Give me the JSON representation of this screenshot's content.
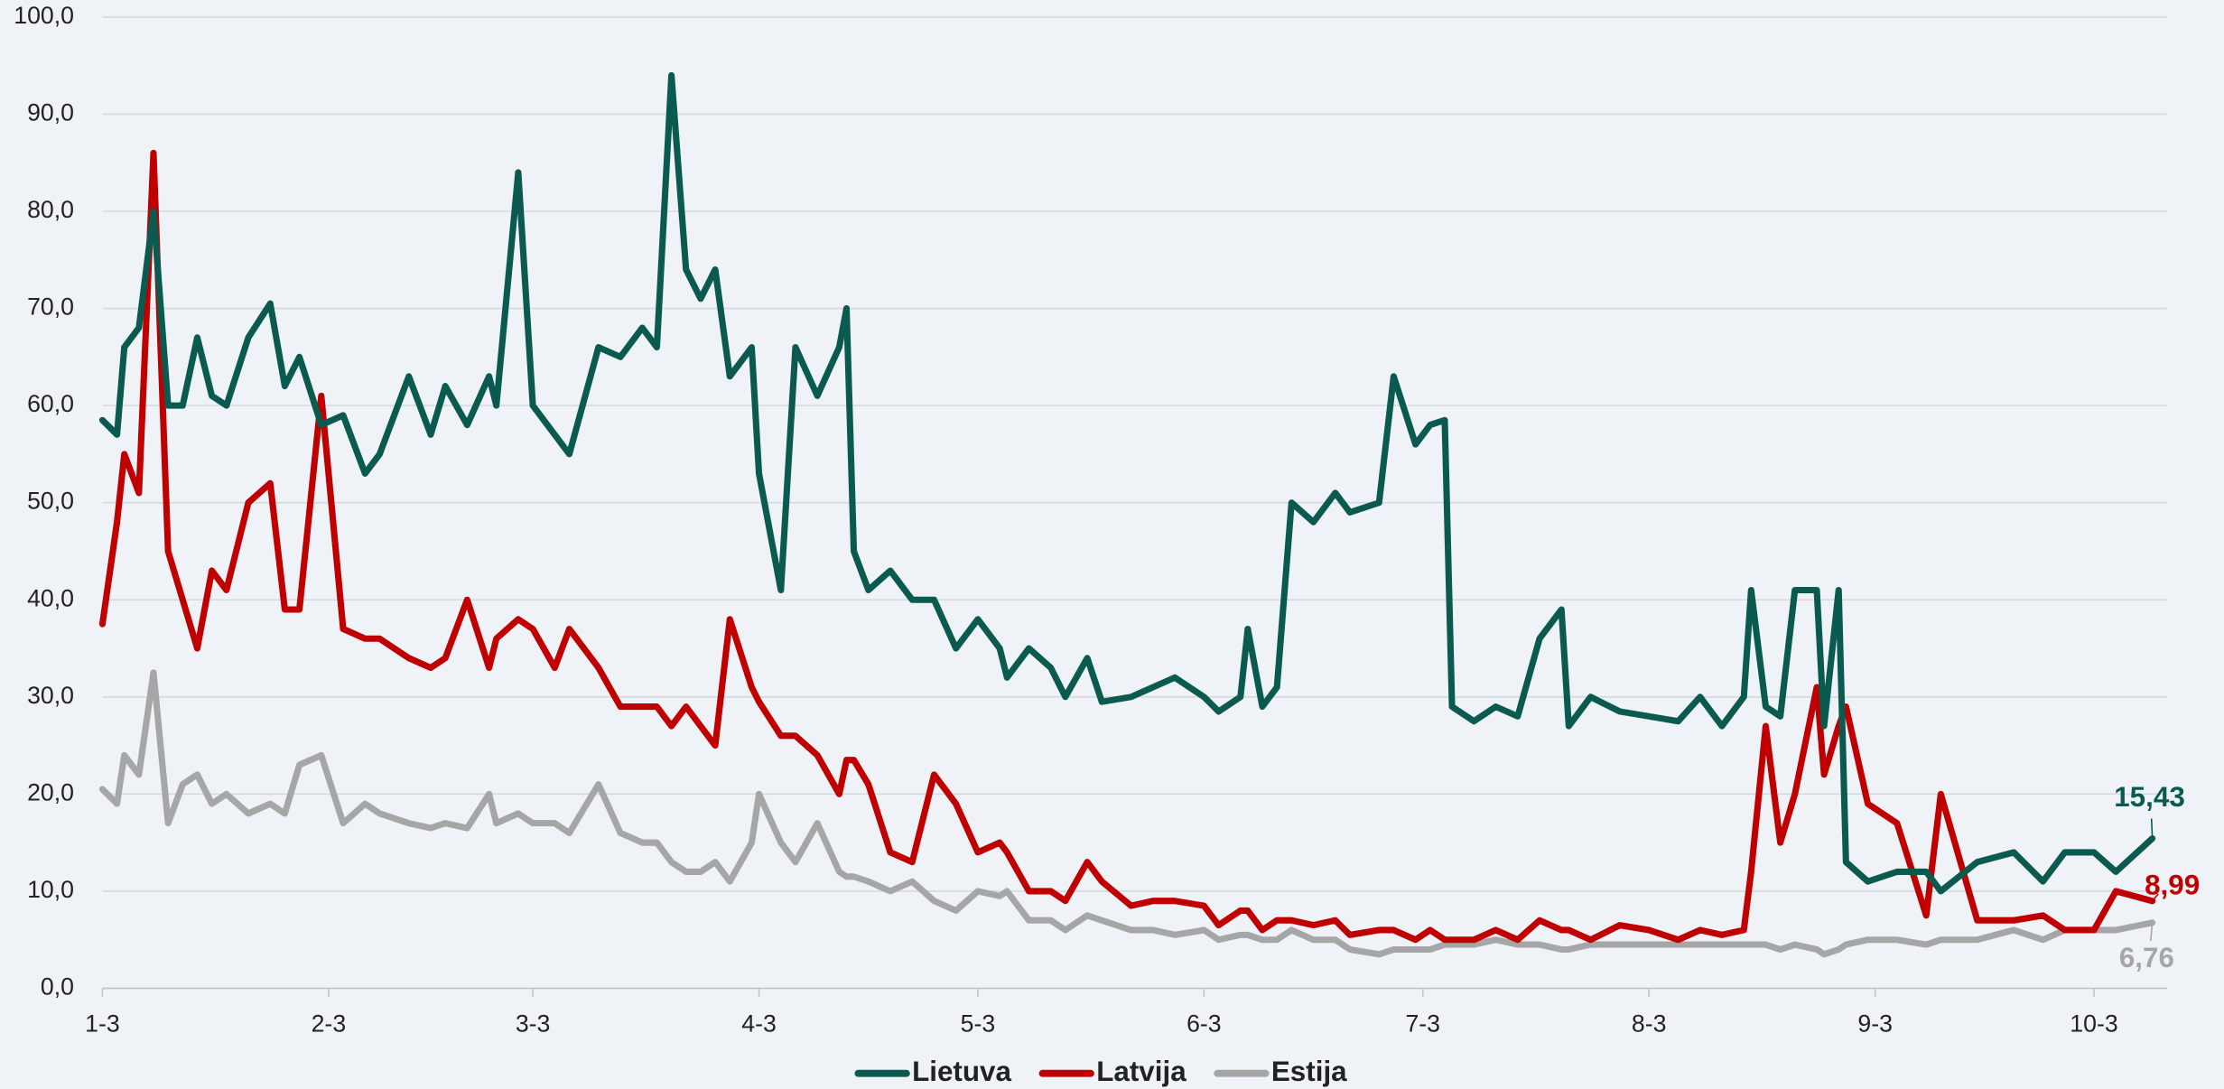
{
  "chart_data": {
    "type": "line",
    "x": [
      0,
      2,
      3,
      5,
      7,
      9,
      11,
      13,
      15,
      17,
      20,
      23,
      25,
      27,
      30,
      33,
      36,
      38,
      42,
      45,
      47,
      50,
      53,
      54,
      57,
      59,
      62,
      64,
      68,
      71,
      74,
      76,
      78,
      80,
      82,
      84,
      86,
      89,
      90,
      93,
      95,
      98,
      101,
      102,
      103,
      105,
      108,
      111,
      114,
      117,
      120,
      123,
      124,
      127,
      130,
      132,
      135,
      137,
      141,
      144,
      147,
      151,
      153,
      156,
      157,
      159,
      161,
      163,
      166,
      169,
      171,
      175,
      177,
      180,
      182,
      184,
      185,
      188,
      191,
      194,
      197,
      200,
      201,
      204,
      208,
      212,
      216,
      219,
      222,
      225,
      226,
      228,
      230,
      232,
      235,
      236,
      238,
      239,
      242,
      246,
      250,
      252,
      257,
      262,
      266,
      269,
      273,
      276,
      281
    ],
    "xlim": [
      0,
      283
    ],
    "xticks": [
      {
        "value": 0,
        "label": "1-3"
      },
      {
        "value": 31,
        "label": "2-3"
      },
      {
        "value": 59,
        "label": "3-3"
      },
      {
        "value": 90,
        "label": "4-3"
      },
      {
        "value": 120,
        "label": "5-3"
      },
      {
        "value": 151,
        "label": "6-3"
      },
      {
        "value": 181,
        "label": "7-3"
      },
      {
        "value": 212,
        "label": "8-3"
      },
      {
        "value": 243,
        "label": "9-3"
      },
      {
        "value": 273,
        "label": "10-3"
      }
    ],
    "ylim": [
      0,
      100
    ],
    "yticks": [
      {
        "value": 0,
        "label": "0,0"
      },
      {
        "value": 10,
        "label": "10,0"
      },
      {
        "value": 20,
        "label": "20,0"
      },
      {
        "value": 30,
        "label": "30,0"
      },
      {
        "value": 40,
        "label": "40,0"
      },
      {
        "value": 50,
        "label": "50,0"
      },
      {
        "value": 60,
        "label": "60,0"
      },
      {
        "value": 70,
        "label": "70,0"
      },
      {
        "value": 80,
        "label": "80,0"
      },
      {
        "value": 90,
        "label": "90,0"
      },
      {
        "value": 100,
        "label": "100,0"
      }
    ],
    "grid": true,
    "legend": "bottom",
    "series": [
      {
        "name": "Lietuva",
        "color": "#0b5a50",
        "values": [
          58.5,
          57,
          66,
          68,
          80,
          60,
          60,
          67,
          61,
          60,
          67,
          70.5,
          62,
          65,
          58,
          59,
          53,
          55,
          63,
          57,
          62,
          58,
          63,
          60,
          84,
          60,
          57,
          55,
          66,
          65,
          68,
          66,
          94,
          74,
          71,
          74,
          63,
          66,
          53,
          41,
          66,
          61,
          66,
          70,
          45,
          41,
          43,
          40,
          40,
          35,
          38,
          35,
          32,
          35,
          33,
          30,
          34,
          29.5,
          30,
          31,
          32,
          30,
          28.5,
          30,
          37,
          29,
          31,
          50,
          48,
          51,
          49,
          50,
          63,
          56,
          58,
          58.5,
          29,
          27.5,
          29,
          28,
          36,
          39,
          27,
          30,
          28.5,
          28,
          27.5,
          30,
          27,
          30,
          41,
          29,
          28,
          41,
          41,
          27,
          41,
          13,
          11,
          12,
          12,
          10,
          13,
          14,
          11,
          14,
          14,
          12,
          15.43
        ],
        "value_labels": {
          "108": "15,43"
        }
      },
      {
        "name": "Latvija",
        "color": "#c00000",
        "values": [
          37.5,
          48,
          55,
          51,
          86,
          45,
          40,
          35,
          43,
          41,
          50,
          52,
          39,
          39,
          61,
          37,
          36,
          36,
          34,
          33,
          34,
          40,
          33,
          36,
          38,
          37,
          33,
          37,
          33,
          29,
          29,
          29,
          27,
          29,
          27,
          25,
          38,
          31,
          29.5,
          26,
          26,
          24,
          20,
          23.5,
          23.5,
          21,
          14,
          13,
          22,
          19,
          14,
          15,
          14,
          10,
          10,
          9,
          13,
          11,
          8.5,
          9,
          9,
          8.5,
          6.5,
          8,
          8,
          6,
          7,
          7,
          6.5,
          7,
          5.5,
          6,
          6,
          5,
          6,
          5,
          5,
          5,
          6,
          5,
          7,
          6,
          6,
          5,
          6.5,
          6,
          5,
          6,
          5.5,
          6,
          12,
          27,
          15,
          20,
          31,
          22,
          27,
          29,
          19,
          17,
          7.5,
          20,
          7,
          7,
          7.5,
          6,
          6,
          10,
          8.99
        ],
        "value_labels": {
          "108": "8,99"
        }
      },
      {
        "name": "Estija",
        "color": "#a6a6a6",
        "values": [
          20.5,
          19,
          24,
          22,
          32.5,
          17,
          21,
          22,
          19,
          20,
          18,
          19,
          18,
          23,
          24,
          17,
          19,
          18,
          17,
          16.5,
          17,
          16.5,
          20,
          17,
          18,
          17,
          17,
          16,
          21,
          16,
          15,
          15,
          13,
          12,
          12,
          13,
          11,
          15,
          20,
          15,
          13,
          17,
          12,
          11.5,
          11.5,
          11,
          10,
          11,
          9,
          8,
          10,
          9.5,
          10,
          7,
          7,
          6,
          7.5,
          7,
          6,
          6,
          5.5,
          6,
          5,
          5.5,
          5.5,
          5,
          5,
          6,
          5,
          5,
          4,
          3.5,
          4,
          4,
          4,
          4.5,
          4.5,
          4.5,
          5,
          4.5,
          4.5,
          4,
          4,
          4.5,
          4.5,
          4.5,
          4.5,
          4.5,
          4.5,
          4.5,
          4.5,
          4.5,
          4,
          4.5,
          4,
          3.5,
          4,
          4.5,
          5,
          5,
          4.5,
          5,
          5,
          6,
          5,
          6,
          6,
          6,
          6.76
        ],
        "value_labels": {
          "108": "6,76"
        }
      }
    ]
  }
}
